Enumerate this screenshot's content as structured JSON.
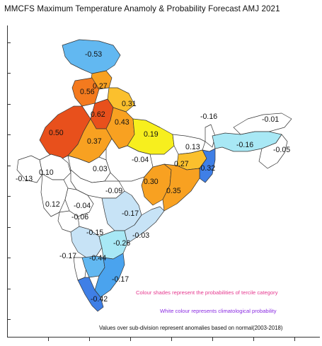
{
  "title": "MMCFS  Maximum Temperature Anamoly & Probability Forecast AMJ 2021",
  "notes": {
    "colour_shades": "Colour shades represent the probabilities of tercile category",
    "white_colour": "White colour represents climatological probability",
    "values_basis": "Values over sub-division represent anomalies based on normal(2003-2018)"
  },
  "colors": {
    "deep_red": "#e8501c",
    "red_orange": "#f47a1e",
    "orange": "#f8a121",
    "light_orange": "#fbc02d",
    "yellow": "#f7ef1e",
    "pale_cyan": "#a8e8f5",
    "light_blue": "#c7e3f6",
    "sky_blue": "#62b8f1",
    "mid_blue": "#4aa3ee",
    "blue": "#3f7fe6",
    "white": "#ffffff"
  },
  "regions": [
    {
      "id": "jammu-kashmir",
      "anomaly": "-0.53",
      "color": "sky_blue"
    },
    {
      "id": "himachal-pradesh",
      "anomaly": "0.27",
      "color": "orange"
    },
    {
      "id": "punjab",
      "anomaly": "0.56",
      "color": "red_orange"
    },
    {
      "id": "uttarakhand",
      "anomaly": "0.31",
      "color": "light_orange"
    },
    {
      "id": "haryana",
      "anomaly": "0.62",
      "color": "deep_red"
    },
    {
      "id": "west-uttar-pradesh",
      "anomaly": "0.43",
      "color": "orange"
    },
    {
      "id": "west-rajasthan",
      "anomaly": "0.50",
      "color": "deep_red"
    },
    {
      "id": "east-uttar-pradesh",
      "anomaly": "0.19",
      "color": "yellow"
    },
    {
      "id": "east-rajasthan",
      "anomaly": "0.37",
      "color": "orange"
    },
    {
      "id": "sub-himalayan-west-bengal",
      "anomaly": "-0.16",
      "color": "white"
    },
    {
      "id": "bihar",
      "anomaly": "0.13",
      "color": "white"
    },
    {
      "id": "arunachal-pradesh",
      "anomaly": "-0.01",
      "color": "white"
    },
    {
      "id": "assam-meghalaya",
      "anomaly": "-0.16",
      "color": "pale_cyan"
    },
    {
      "id": "nmmt",
      "anomaly": "-0.05",
      "color": "white"
    },
    {
      "id": "west-madhya-pradesh",
      "anomaly": "0.03",
      "color": "white"
    },
    {
      "id": "east-madhya-pradesh",
      "anomaly": "-0.04",
      "color": "white"
    },
    {
      "id": "jharkhand",
      "anomaly": "0.27",
      "color": "light_orange"
    },
    {
      "id": "gangetic-west-bengal",
      "anomaly": "-0.32",
      "color": "blue"
    },
    {
      "id": "gujarat-region",
      "anomaly": "0.10",
      "color": "white"
    },
    {
      "id": "saurashtra-kutch",
      "anomaly": "-0.13",
      "color": "white"
    },
    {
      "id": "chhattisgarh",
      "anomaly": "0.30",
      "color": "orange"
    },
    {
      "id": "odisha",
      "anomaly": "0.35",
      "color": "orange"
    },
    {
      "id": "west-vidarbha",
      "anomaly": "-0.09",
      "color": "white"
    },
    {
      "id": "konkan-goa-north",
      "anomaly": "0.12",
      "color": "white"
    },
    {
      "id": "madhya-maharashtra",
      "anomaly": "-0.04",
      "color": "white"
    },
    {
      "id": "marathwada",
      "anomaly": "-0.06",
      "color": "white"
    },
    {
      "id": "telangana",
      "anomaly": "-0.17",
      "color": "light_blue"
    },
    {
      "id": "north-interior-karnataka",
      "anomaly": "-0.15",
      "color": "light_blue"
    },
    {
      "id": "coastal-andhra-pradesh",
      "anomaly": "-0.03",
      "color": "light_blue"
    },
    {
      "id": "rayalaseema",
      "anomaly": "-0.26",
      "color": "pale_cyan"
    },
    {
      "id": "coastal-karnataka",
      "anomaly": "-0.17",
      "color": "white"
    },
    {
      "id": "south-interior-karnataka",
      "anomaly": "-0.44",
      "color": "sky_blue"
    },
    {
      "id": "tamil-nadu",
      "anomaly": "-0.17",
      "color": "mid_blue"
    },
    {
      "id": "kerala",
      "anomaly": "-0.42",
      "color": "blue"
    }
  ]
}
